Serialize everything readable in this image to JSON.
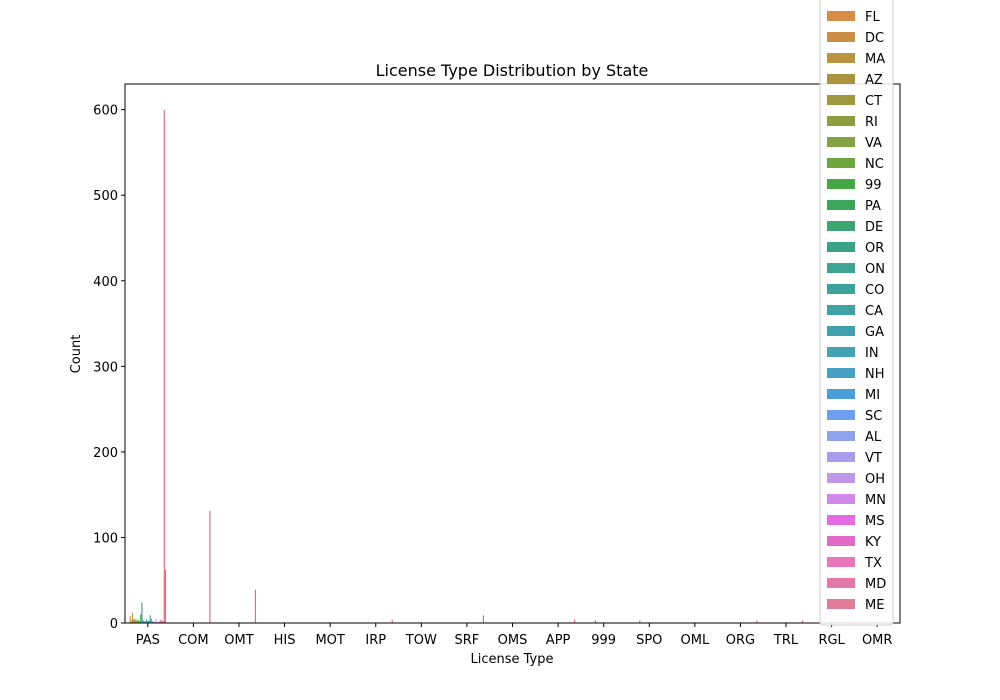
{
  "chart_data": {
    "type": "bar",
    "title": "License Type Distribution by State",
    "xlabel": "License Type",
    "ylabel": "Count",
    "ylim": [
      0,
      630
    ],
    "yticks": [
      0,
      100,
      200,
      300,
      400,
      500,
      600
    ],
    "categories": [
      "PAS",
      "COM",
      "OMT",
      "HIS",
      "MOT",
      "IRP",
      "TOW",
      "SRF",
      "OMS",
      "APP",
      "999",
      "SPO",
      "OML",
      "ORG",
      "TRL",
      "RGL",
      "OMR"
    ],
    "legend_position": "upper right (extends above the plot)",
    "series": [
      {
        "name": "FL",
        "color": "#d88c48",
        "values": [
          8,
          0,
          0,
          0,
          0,
          0,
          0,
          0,
          0,
          0,
          0,
          0,
          0,
          0,
          0,
          0,
          0
        ]
      },
      {
        "name": "DC",
        "color": "#c98e44",
        "values": [
          3,
          0,
          0,
          0,
          0,
          0,
          0,
          0,
          0,
          0,
          0,
          0,
          0,
          0,
          0,
          0,
          0
        ]
      },
      {
        "name": "MA",
        "color": "#bb9442",
        "values": [
          12,
          0,
          0,
          0,
          0,
          0,
          0,
          0,
          0,
          0,
          0,
          0,
          0,
          0,
          0,
          0,
          0
        ]
      },
      {
        "name": "AZ",
        "color": "#ab9440",
        "values": [
          4,
          0,
          0,
          0,
          0,
          0,
          0,
          0,
          0,
          0,
          0,
          0,
          0,
          0,
          0,
          0,
          0
        ]
      },
      {
        "name": "CT",
        "color": "#9e983e",
        "values": [
          5,
          0,
          0,
          0,
          0,
          0,
          0,
          0,
          0,
          0,
          0,
          0,
          0,
          0,
          0,
          0,
          0
        ]
      },
      {
        "name": "RI",
        "color": "#909c40",
        "values": [
          3,
          0,
          0,
          0,
          0,
          0,
          0,
          0,
          0,
          0,
          0,
          0,
          0,
          0,
          0,
          0,
          0
        ]
      },
      {
        "name": "VA",
        "color": "#83a242",
        "values": [
          4,
          0,
          0,
          0,
          0,
          0,
          0,
          0,
          0,
          0,
          0,
          0,
          0,
          0,
          0,
          0,
          0
        ]
      },
      {
        "name": "NC",
        "color": "#6ea63e",
        "values": [
          3,
          0,
          0,
          0,
          0,
          0,
          0,
          0,
          0,
          0,
          0,
          3,
          0,
          0,
          0,
          0,
          0
        ]
      },
      {
        "name": "99",
        "color": "#45a844",
        "values": [
          2,
          0,
          0,
          0,
          0,
          0,
          0,
          0,
          0,
          0,
          3,
          0,
          0,
          0,
          0,
          0,
          0
        ]
      },
      {
        "name": "PA",
        "color": "#3ca65a",
        "values": [
          10,
          0,
          0,
          0,
          0,
          0,
          0,
          0,
          0,
          0,
          0,
          0,
          0,
          0,
          0,
          0,
          0
        ]
      },
      {
        "name": "DE",
        "color": "#3ba672",
        "values": [
          24,
          0,
          0,
          0,
          0,
          0,
          0,
          0,
          0,
          0,
          0,
          0,
          0,
          0,
          0,
          0,
          0
        ]
      },
      {
        "name": "OR",
        "color": "#3aa385",
        "values": [
          3,
          0,
          0,
          0,
          0,
          0,
          0,
          0,
          0,
          0,
          0,
          0,
          0,
          0,
          0,
          0,
          0
        ]
      },
      {
        "name": "ON",
        "color": "#3ca395",
        "values": [
          2,
          0,
          0,
          0,
          0,
          0,
          0,
          0,
          0,
          0,
          0,
          0,
          0,
          0,
          0,
          0,
          0
        ]
      },
      {
        "name": "CO",
        "color": "#3ca29c",
        "values": [
          2,
          0,
          0,
          0,
          0,
          0,
          0,
          0,
          0,
          0,
          0,
          0,
          0,
          0,
          0,
          0,
          0
        ]
      },
      {
        "name": "CA",
        "color": "#3ea3a4",
        "values": [
          4,
          0,
          0,
          0,
          0,
          0,
          0,
          0,
          0,
          0,
          0,
          0,
          0,
          0,
          0,
          0,
          0
        ]
      },
      {
        "name": "GA",
        "color": "#40a0ab",
        "values": [
          2,
          0,
          0,
          0,
          0,
          0,
          0,
          0,
          0,
          0,
          0,
          0,
          0,
          0,
          0,
          0,
          0
        ]
      },
      {
        "name": "IN",
        "color": "#43a2b5",
        "values": [
          3,
          0,
          0,
          0,
          0,
          0,
          0,
          0,
          0,
          0,
          0,
          0,
          0,
          0,
          0,
          0,
          0
        ]
      },
      {
        "name": "NH",
        "color": "#45a0c4",
        "values": [
          9,
          0,
          0,
          0,
          0,
          0,
          0,
          0,
          0,
          0,
          0,
          0,
          0,
          0,
          0,
          0,
          0
        ]
      },
      {
        "name": "MI",
        "color": "#4b9ed9",
        "values": [
          5,
          0,
          0,
          0,
          0,
          0,
          0,
          0,
          0,
          0,
          0,
          0,
          0,
          0,
          0,
          0,
          0
        ]
      },
      {
        "name": "SC",
        "color": "#6c9ff0",
        "values": [
          2,
          0,
          0,
          0,
          0,
          0,
          0,
          0,
          0,
          0,
          0,
          0,
          0,
          0,
          0,
          0,
          0
        ]
      },
      {
        "name": "AL",
        "color": "#8fa2ee",
        "values": [
          2,
          0,
          0,
          0,
          0,
          0,
          0,
          0,
          0,
          0,
          0,
          0,
          0,
          0,
          0,
          0,
          0
        ]
      },
      {
        "name": "VT",
        "color": "#a89ded",
        "values": [
          1,
          0,
          0,
          0,
          0,
          0,
          0,
          0,
          0,
          0,
          0,
          0,
          0,
          0,
          0,
          0,
          0
        ]
      },
      {
        "name": "OH",
        "color": "#bf98e8",
        "values": [
          5,
          0,
          0,
          0,
          0,
          0,
          0,
          0,
          0,
          0,
          0,
          0,
          0,
          0,
          0,
          0,
          0
        ]
      },
      {
        "name": "MN",
        "color": "#d188e8",
        "values": [
          1,
          0,
          0,
          0,
          0,
          0,
          0,
          0,
          0,
          0,
          0,
          0,
          0,
          0,
          0,
          0,
          0
        ]
      },
      {
        "name": "MS",
        "color": "#e46be3",
        "values": [
          1,
          0,
          0,
          0,
          0,
          0,
          0,
          0,
          0,
          0,
          0,
          0,
          0,
          0,
          0,
          0,
          0
        ]
      },
      {
        "name": "KY",
        "color": "#e26bc8",
        "values": [
          2,
          0,
          0,
          0,
          0,
          0,
          0,
          0,
          0,
          0,
          0,
          0,
          0,
          0,
          0,
          0,
          0
        ]
      },
      {
        "name": "TX",
        "color": "#e876b8",
        "values": [
          4,
          0,
          0,
          0,
          0,
          0,
          0,
          0,
          0,
          0,
          0,
          0,
          0,
          0,
          0,
          0,
          0
        ]
      },
      {
        "name": "MD",
        "color": "#e47aaa",
        "values": [
          3,
          0,
          0,
          0,
          0,
          0,
          0,
          0,
          0,
          0,
          0,
          0,
          0,
          0,
          0,
          0,
          0
        ]
      },
      {
        "name": "ME",
        "color": "#e37c99",
        "values": [
          2,
          0,
          0,
          0,
          0,
          0,
          0,
          0,
          0,
          0,
          0,
          0,
          0,
          0,
          0,
          0,
          0
        ]
      },
      {
        "name": "",
        "color": "#e8697c",
        "values": [
          600,
          131,
          39,
          0,
          0,
          4,
          0,
          9,
          0,
          4,
          0,
          0,
          0,
          3,
          3,
          2,
          0
        ]
      },
      {
        "name": "",
        "color": "#e36b6b",
        "values": [
          62,
          0,
          0,
          0,
          0,
          0,
          0,
          0,
          0,
          0,
          0,
          0,
          0,
          0,
          0,
          0,
          0
        ]
      }
    ]
  }
}
